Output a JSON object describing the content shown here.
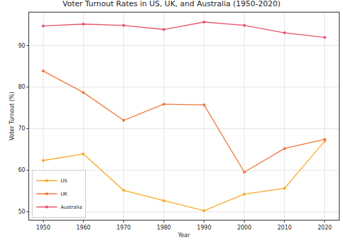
{
  "chart_data": {
    "type": "line",
    "title": "Voter Turnout Rates in US, UK, and Australia (1950-2020)",
    "x_label": "Year",
    "y_label": "Voter Turnout (%)",
    "x": [
      1950,
      1960,
      1970,
      1980,
      1990,
      2000,
      2010,
      2020
    ],
    "series": [
      {
        "name": "US",
        "color": "#f7a823",
        "values": [
          62.3,
          63.9,
          55.1,
          52.6,
          50.2,
          54.2,
          55.6,
          67.0
        ]
      },
      {
        "name": "UK",
        "color": "#ee7437",
        "values": [
          83.9,
          78.7,
          72.0,
          75.9,
          75.7,
          59.5,
          65.2,
          67.4
        ]
      },
      {
        "name": "Australia",
        "color": "#e8506a",
        "values": [
          94.75,
          95.2,
          94.9,
          93.9,
          95.7,
          94.9,
          93.1,
          92.0
        ]
      }
    ],
    "xlim": [
      1946.5,
      2023.5
    ],
    "xticks": [
      1950,
      1960,
      1970,
      1980,
      1990,
      2000,
      2010,
      2020
    ],
    "ylim": [
      48,
      98
    ],
    "yticks": [
      50,
      60,
      70,
      80,
      90
    ],
    "grid": true,
    "legend": "lower left",
    "marker": "circle"
  }
}
